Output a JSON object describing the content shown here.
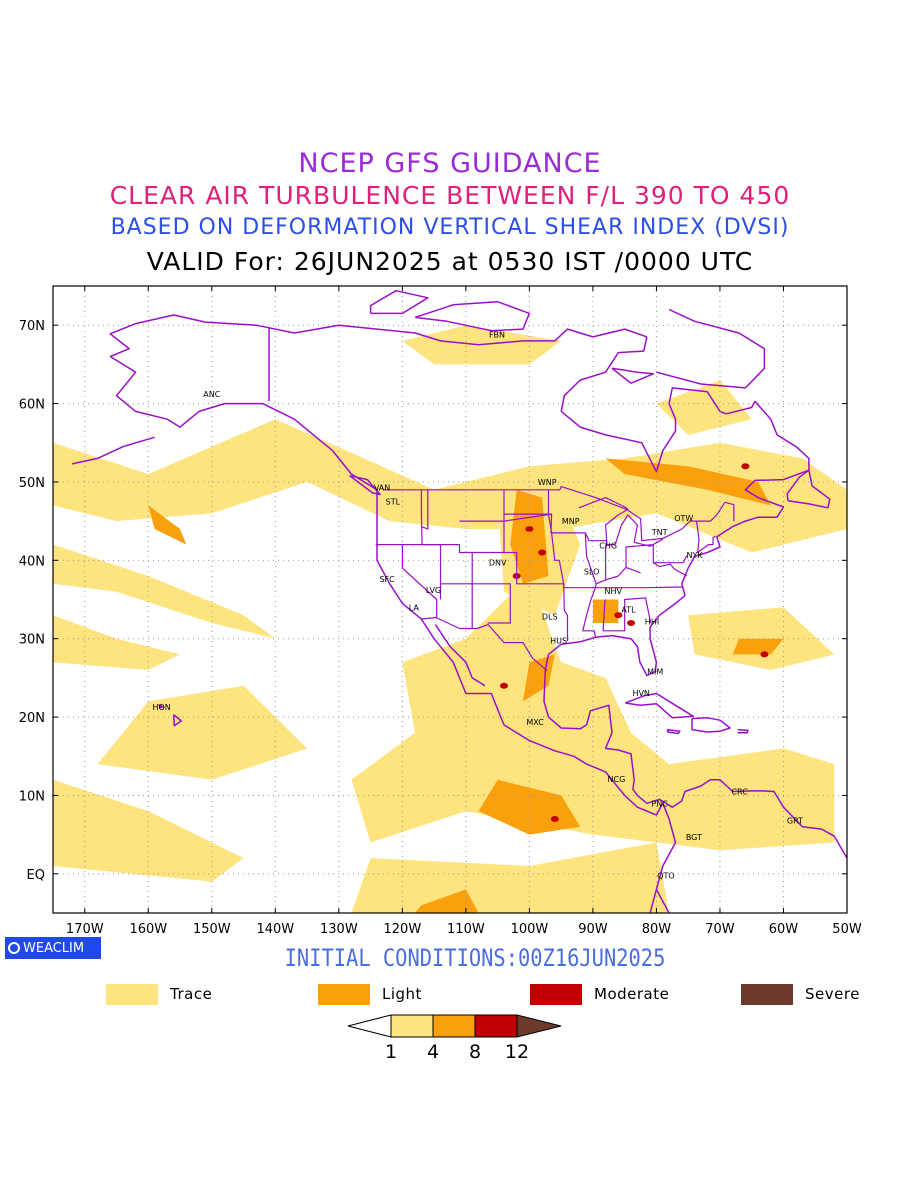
{
  "titles": {
    "line1": "NCEP GFS GUIDANCE",
    "line2": "CLEAR AIR TURBULENCE BETWEEN F/L 390 TO 450",
    "line3": "BASED ON DEFORMATION VERTICAL SHEAR INDEX (DVSI)",
    "line4": "VALID For: 26JUN2025 at 0530 IST /0000 UTC"
  },
  "map": {
    "lon_range": [
      -175,
      -50
    ],
    "lat_range": [
      -5,
      75
    ],
    "lon_ticks": [
      {
        "v": -170,
        "label": "170W"
      },
      {
        "v": -160,
        "label": "160W"
      },
      {
        "v": -150,
        "label": "150W"
      },
      {
        "v": -140,
        "label": "140W"
      },
      {
        "v": -130,
        "label": "130W"
      },
      {
        "v": -120,
        "label": "120W"
      },
      {
        "v": -110,
        "label": "110W"
      },
      {
        "v": -100,
        "label": "100W"
      },
      {
        "v": -90,
        "label": "90W"
      },
      {
        "v": -80,
        "label": "80W"
      },
      {
        "v": -70,
        "label": "70W"
      },
      {
        "v": -60,
        "label": "60W"
      },
      {
        "v": -50,
        "label": "50W"
      }
    ],
    "lat_ticks": [
      {
        "v": 0,
        "label": "EQ"
      },
      {
        "v": 10,
        "label": "10N"
      },
      {
        "v": 20,
        "label": "20N"
      },
      {
        "v": 30,
        "label": "30N"
      },
      {
        "v": 40,
        "label": "40N"
      },
      {
        "v": 50,
        "label": "50N"
      },
      {
        "v": 60,
        "label": "60N"
      },
      {
        "v": 70,
        "label": "70N"
      }
    ],
    "stations": [
      {
        "code": "ANC",
        "lon": -150.0,
        "lat": 61.2
      },
      {
        "code": "FBN",
        "lon": -105.1,
        "lat": 68.8
      },
      {
        "code": "VAN",
        "lon": -123.2,
        "lat": 49.3
      },
      {
        "code": "STL",
        "lon": -121.5,
        "lat": 47.5
      },
      {
        "code": "WNP",
        "lon": -97.2,
        "lat": 50.0
      },
      {
        "code": "MNP",
        "lon": -93.5,
        "lat": 45.0
      },
      {
        "code": "OTW",
        "lon": -75.7,
        "lat": 45.4
      },
      {
        "code": "TNT",
        "lon": -79.5,
        "lat": 43.6
      },
      {
        "code": "CHG",
        "lon": -87.6,
        "lat": 41.9
      },
      {
        "code": "NYK",
        "lon": -74.0,
        "lat": 40.7
      },
      {
        "code": "DNV",
        "lon": -105.0,
        "lat": 39.7
      },
      {
        "code": "SFC",
        "lon": -122.4,
        "lat": 37.6
      },
      {
        "code": "SLO",
        "lon": -90.2,
        "lat": 38.6
      },
      {
        "code": "LVG",
        "lon": -115.1,
        "lat": 36.2
      },
      {
        "code": "NHV",
        "lon": -86.8,
        "lat": 36.1
      },
      {
        "code": "LA",
        "lon": -118.2,
        "lat": 34.0
      },
      {
        "code": "ATL",
        "lon": -84.4,
        "lat": 33.7
      },
      {
        "code": "DLS",
        "lon": -96.8,
        "lat": 32.8
      },
      {
        "code": "HHI",
        "lon": -80.7,
        "lat": 32.2
      },
      {
        "code": "HUS",
        "lon": -95.4,
        "lat": 29.8
      },
      {
        "code": "MIM",
        "lon": -80.2,
        "lat": 25.8
      },
      {
        "code": "HVN",
        "lon": -82.4,
        "lat": 23.1
      },
      {
        "code": "HON",
        "lon": -157.9,
        "lat": 21.3
      },
      {
        "code": "MXC",
        "lon": -99.1,
        "lat": 19.4
      },
      {
        "code": "NCG",
        "lon": -86.3,
        "lat": 12.1
      },
      {
        "code": "CRC",
        "lon": -66.9,
        "lat": 10.5
      },
      {
        "code": "PNC",
        "lon": -79.5,
        "lat": 9.0
      },
      {
        "code": "GRT",
        "lon": -58.2,
        "lat": 6.8
      },
      {
        "code": "BGT",
        "lon": -74.1,
        "lat": 4.7
      },
      {
        "code": "QTO",
        "lon": -78.5,
        "lat": -0.2
      }
    ]
  },
  "logo": {
    "text": "WEACLIM"
  },
  "initial_conditions": "INITIAL CONDITIONS:00Z16JUN2025",
  "legend": [
    {
      "label": "Trace",
      "color": "#fde47f"
    },
    {
      "label": "Light",
      "color": "#f9a00c"
    },
    {
      "label": "Moderate",
      "color": "#c00000"
    },
    {
      "label": "Severe",
      "color": "#6b3a2a"
    }
  ],
  "colorbar": {
    "labels": [
      "1",
      "4",
      "8",
      "12"
    ],
    "colors": [
      "#ffffff",
      "#fde47f",
      "#f9a00c",
      "#c00000",
      "#6b3a2a"
    ]
  },
  "colors": {
    "coastline": "#9a10c8",
    "trace": "#fde47f",
    "light": "#f9a00c",
    "moderate": "#c00000"
  }
}
